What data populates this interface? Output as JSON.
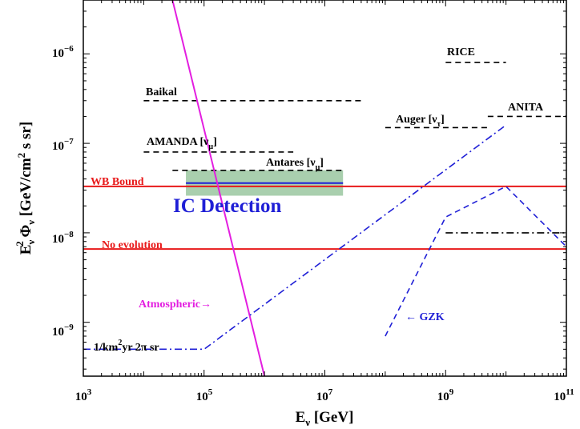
{
  "chart_data": {
    "type": "line",
    "xscale": "log",
    "yscale": "log",
    "xlim": [
      1000,
      100000000000
    ],
    "ylim": [
      2.5e-10,
      4e-06
    ],
    "xlabel": {
      "main": "E",
      "sub": "ν",
      "rest": " [GeV]"
    },
    "ylabel": {
      "main": "E",
      "sub1": "ν",
      "sup": "2",
      "phi": " Φ",
      "sub2": "ν",
      "rest1": "  [GeV/cm",
      "sup2": "2",
      "rest2": " s sr]"
    },
    "x_ticks": [
      {
        "value": 1000,
        "base": "10",
        "exp": "3"
      },
      {
        "value": 100000,
        "base": "10",
        "exp": "5"
      },
      {
        "value": 10000000,
        "base": "10",
        "exp": "7"
      },
      {
        "value": 1000000000,
        "base": "10",
        "exp": "9"
      },
      {
        "value": 100000000000,
        "base": "10",
        "exp": "11"
      }
    ],
    "y_ticks": [
      {
        "value": 1e-09,
        "base": "10",
        "exp": "−9"
      },
      {
        "value": 1e-08,
        "base": "10",
        "exp": "−8"
      },
      {
        "value": 1e-07,
        "base": "10",
        "exp": "−7"
      },
      {
        "value": 1e-06,
        "base": "10",
        "exp": "−6"
      }
    ],
    "series": [
      {
        "label": "Baikal",
        "color": "#000000",
        "style": "dashed",
        "x": [
          10000,
          40000000
        ],
        "y": [
          3e-07,
          3e-07
        ]
      },
      {
        "label": "AMANDA",
        "color": "#000000",
        "style": "dashed",
        "x": [
          10000,
          3000000
        ],
        "y": [
          8e-08,
          8e-08
        ]
      },
      {
        "label": "Antares",
        "color": "#000000",
        "style": "dashed",
        "x": [
          30000,
          20000000
        ],
        "y": [
          5e-08,
          5e-08
        ]
      },
      {
        "label": "RICE",
        "color": "#000000",
        "style": "dashed",
        "x": [
          1000000000,
          10000000000
        ],
        "y": [
          8e-07,
          8e-07
        ]
      },
      {
        "label": "Auger",
        "color": "#000000",
        "style": "dashed",
        "x": [
          100000000,
          5000000000
        ],
        "y": [
          1.5e-07,
          1.5e-07
        ]
      },
      {
        "label": "ANITA",
        "color": "#000000",
        "style": "dashed",
        "x": [
          5000000000,
          100000000000
        ],
        "y": [
          2e-07,
          2e-07
        ]
      },
      {
        "label": "Auger tau (dash-dot)",
        "color": "#000000",
        "style": "dashdot",
        "x": [
          1000000000,
          100000000000
        ],
        "y": [
          1e-08,
          1e-08
        ]
      },
      {
        "label": "WB Bound",
        "color": "#e8191a",
        "style": "solid",
        "x": [
          1000,
          100000000000
        ],
        "y": [
          3.3e-08,
          3.3e-08
        ]
      },
      {
        "label": "No evolution",
        "color": "#e8191a",
        "style": "solid",
        "x": [
          1000,
          100000000000
        ],
        "y": [
          6.6e-09,
          6.6e-09
        ]
      },
      {
        "label": "IC Detection",
        "color": "#1f1fd6",
        "style": "solid",
        "x": [
          50000,
          20000000
        ],
        "y": [
          3.6e-08,
          3.6e-08
        ]
      },
      {
        "label": "Atmospheric",
        "color": "#e31ee0",
        "style": "solid",
        "x": [
          30000,
          1000000
        ],
        "y": [
          4e-06,
          2.5e-10
        ]
      },
      {
        "label": "1/km2yr 2pi sr",
        "color": "#1f1fd6",
        "style": "dashdot",
        "x": [
          1000,
          100000,
          10000000000
        ],
        "y": [
          5e-10,
          5e-10,
          1.6e-07
        ]
      },
      {
        "label": "GZK",
        "color": "#1f1fd6",
        "style": "dashed",
        "x": [
          100000000,
          1000000000,
          10000000000,
          100000000000
        ],
        "y": [
          7e-10,
          1.5e-08,
          3.3e-08,
          7e-09
        ]
      }
    ],
    "region": {
      "label": "IC Detection",
      "color": "#a9cfae",
      "x": [
        50000,
        20000000
      ],
      "y": [
        2.6e-08,
        5e-08
      ]
    },
    "annotations": {
      "baikal": "Baikal",
      "amanda_main": "AMANDA [ν",
      "amanda_sub": "μ",
      "amanda_close": "]",
      "antares_main": "Antares [ν",
      "antares_sub": "μ",
      "antares_close": "]",
      "rice": "RICE",
      "auger_main": "Auger [ν",
      "auger_sub": "τ",
      "auger_close": "]",
      "anita": "ANITA",
      "wb_bound": "WB Bound",
      "ic_detection": "IC Detection",
      "no_evolution": "No evolution",
      "atmospheric": "Atmospheric→",
      "gzk": "← GZK",
      "km_part1": "1/km",
      "km_sup": "2",
      "km_part2": "yr 2π sr"
    },
    "colors": {
      "red": "#e8191a",
      "magenta": "#e31ee0",
      "blue": "#1f1fd6",
      "black": "#000000",
      "green_band": "#a9cfae"
    },
    "grid": false,
    "legend": "none"
  }
}
